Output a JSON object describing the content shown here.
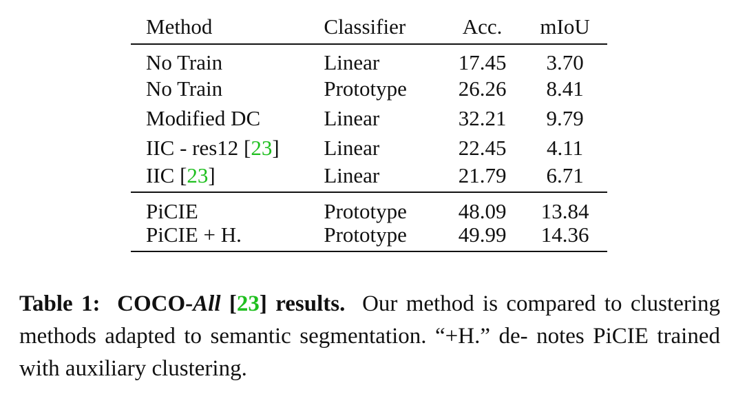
{
  "table": {
    "headers": {
      "method": "Method",
      "classifier": "Classifier",
      "acc": "Acc.",
      "miou": "mIoU"
    },
    "baseline_rows": [
      {
        "method": "No Train",
        "method_cite": "",
        "method_cite_close": "",
        "classifier": "Linear",
        "acc": "17.45",
        "miou": "3.70"
      },
      {
        "method": "No Train",
        "method_cite": "",
        "method_cite_close": "",
        "classifier": "Prototype",
        "acc": "26.26",
        "miou": "8.41"
      },
      {
        "method": "Modified DC",
        "method_cite": "",
        "method_cite_close": "",
        "classifier": "Linear",
        "acc": "32.21",
        "miou": "9.79"
      },
      {
        "method": "IIC - res12 [",
        "method_cite": "23",
        "method_cite_close": "]",
        "classifier": "Linear",
        "acc": "22.45",
        "miou": "4.11"
      },
      {
        "method": "IIC [",
        "method_cite": "23",
        "method_cite_close": "]",
        "classifier": "Linear",
        "acc": "21.79",
        "miou": "6.71"
      }
    ],
    "ours_rows": [
      {
        "method": "PiCIE",
        "classifier": "Prototype",
        "acc": "48.09",
        "miou": "13.84"
      },
      {
        "method": "PiCIE + H.",
        "classifier": "Prototype",
        "acc": "49.99",
        "miou": "14.36"
      }
    ]
  },
  "caption": {
    "label": "Table 1:",
    "title_pre": "COCO-",
    "title_italic": "All",
    "title_bracket_open": " [",
    "title_cite": "23",
    "title_bracket_close": "]",
    "title_post": " results.",
    "body": "Our method is compared to clustering methods adapted to semantic segmentation. “+H.” de- notes PiCIE trained with auxiliary clustering."
  },
  "colors": {
    "citation": "#1fbf1f",
    "text": "#111111"
  }
}
